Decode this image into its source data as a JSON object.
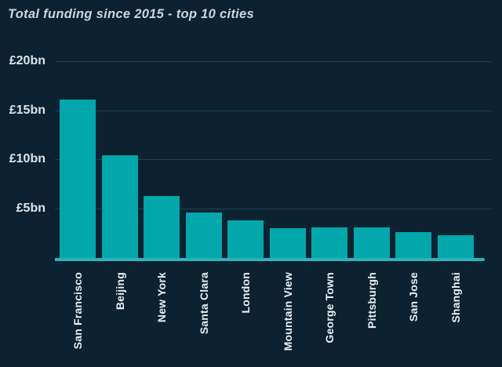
{
  "header": {
    "title": "Total funding since 2015 - top 10 cities"
  },
  "colors": {
    "background": "#0c2230",
    "bar": "#01a7ab",
    "baseline": "#2bb3b8",
    "gridline": "#164650",
    "title_text": "#ccd5dd",
    "y_axis_text": "#dce4eb",
    "x_axis_text": "#e9eff4"
  },
  "chart_data": {
    "type": "bar",
    "title": "Total funding since 2015 - top 10 cities",
    "xlabel": "",
    "ylabel": "",
    "unit": "£bn",
    "categories": [
      "San Francisco",
      "Beijing",
      "New York",
      "Santa Clara",
      "London",
      "Mountain View",
      "George Town",
      "Pittsburgh",
      "San Jose",
      "Shanghai"
    ],
    "values": [
      16.1,
      10.4,
      6.3,
      4.6,
      3.8,
      3.0,
      3.1,
      3.1,
      2.6,
      2.3
    ],
    "yticks": [
      {
        "label": "£20bn",
        "value": 20
      },
      {
        "label": "£15bn",
        "value": 15
      },
      {
        "label": "£10bn",
        "value": 10
      },
      {
        "label": "£5bn",
        "value": 5
      }
    ],
    "ylim": [
      0,
      21
    ],
    "grid": true,
    "legend": "none",
    "bar_orientation": "vertical",
    "x_tick_rotation_deg": 90
  }
}
